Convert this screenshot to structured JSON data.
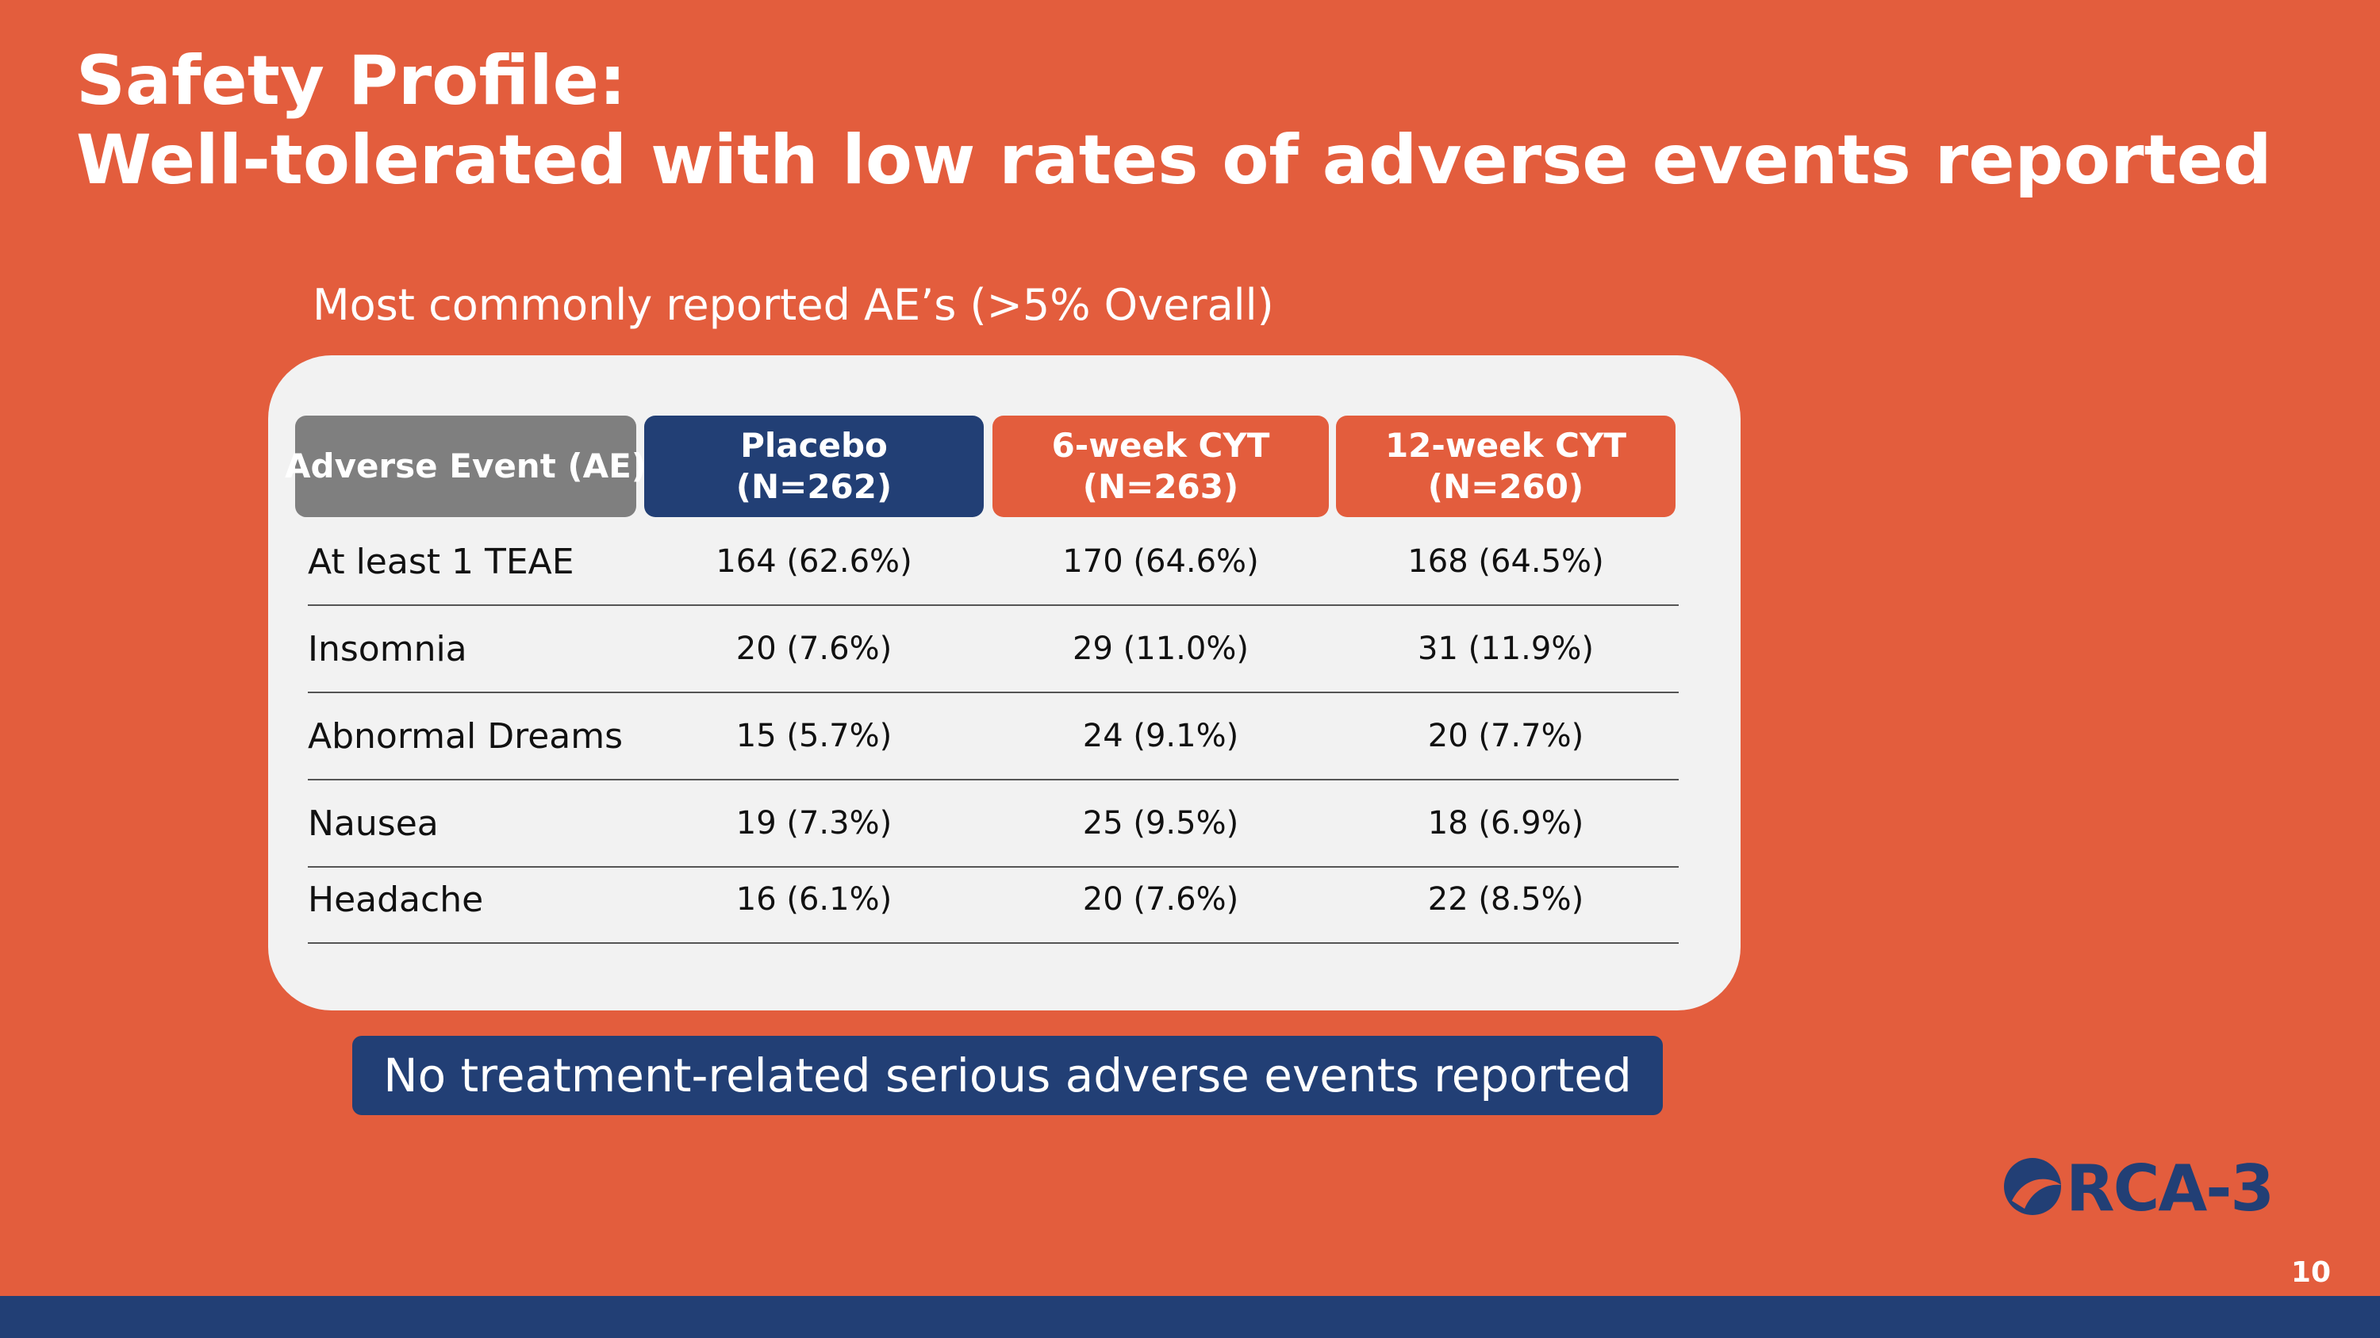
{
  "slide": {
    "title_line1": "Safety Profile:",
    "title_line2": "Well-tolerated with low rates of adverse events reported",
    "subtitle": "Most commonly reported AE’s (>5% Overall)",
    "banner": "No treatment-related serious adverse events reported",
    "logo_text": "ORCA-3",
    "page_number": "10"
  },
  "table": {
    "headers": [
      {
        "line1": "Adverse Event (AE)",
        "line2": ""
      },
      {
        "line1": "Placebo",
        "line2": "(N=262)"
      },
      {
        "line1": "6-week CYT",
        "line2": "(N=263)"
      },
      {
        "line1": "12-week CYT",
        "line2": "(N=260)"
      }
    ],
    "rows": [
      {
        "event": "At least 1 TEAE",
        "placebo": "164 (62.6%)",
        "cyt_6wk": "170 (64.6%)",
        "cyt_12wk": "168 (64.5%)"
      },
      {
        "event": "Insomnia",
        "placebo": "20 (7.6%)",
        "cyt_6wk": "29 (11.0%)",
        "cyt_12wk": "31 (11.9%)"
      },
      {
        "event": "Abnormal Dreams",
        "placebo": "15 (5.7%)",
        "cyt_6wk": "24 (9.1%)",
        "cyt_12wk": "20 (7.7%)"
      },
      {
        "event": "Nausea",
        "placebo": "19 (7.3%)",
        "cyt_6wk": "25 (9.5%)",
        "cyt_12wk": "18 (6.9%)"
      },
      {
        "event": "Headache",
        "placebo": "16 (6.1%)",
        "cyt_6wk": "20 (7.6%)",
        "cyt_12wk": "22 (8.5%)"
      }
    ]
  },
  "colors": {
    "background": "#e35d3d",
    "navy": "#223f75",
    "gray_header": "#7f7f7f",
    "card": "#f2f2f2"
  }
}
